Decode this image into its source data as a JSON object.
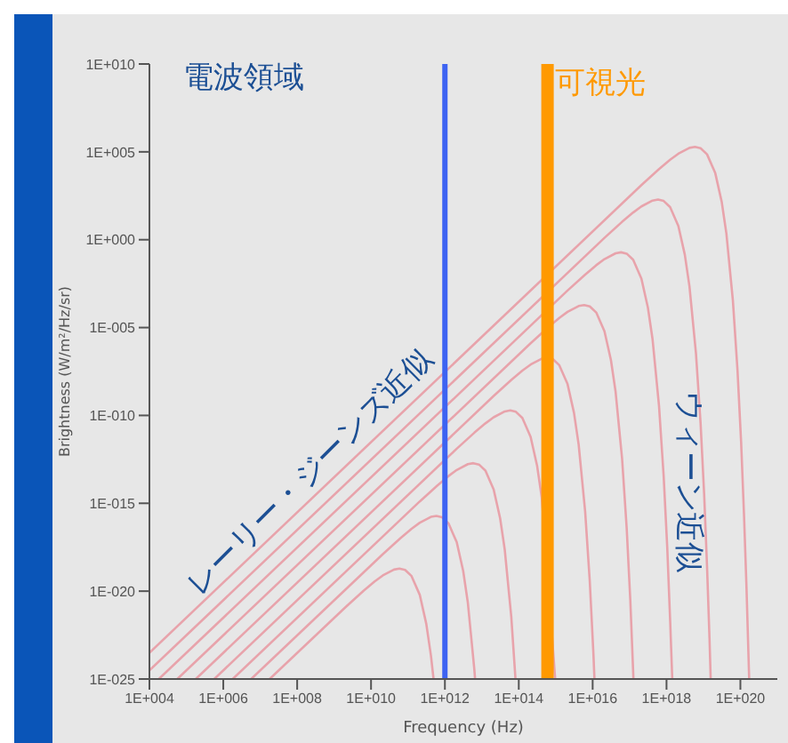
{
  "chart_data": {
    "type": "line",
    "xlabel": "Frequency (Hz)",
    "ylabel": "Brightness (W/m²/Hz/sr)",
    "log": "xy",
    "grid": false,
    "legend": false,
    "marker": "none",
    "line_style": "solid",
    "xlim": [
      10000.0,
      1e+21
    ],
    "ylim": [
      1e-25,
      10000000000.0
    ],
    "xticks": [
      {
        "value": 10000.0,
        "label": "1E+004"
      },
      {
        "value": 1000000.0,
        "label": "1E+006"
      },
      {
        "value": 100000000.0,
        "label": "1E+008"
      },
      {
        "value": 10000000000.0,
        "label": "1E+010"
      },
      {
        "value": 1000000000000.0,
        "label": "1E+012"
      },
      {
        "value": 100000000000000.0,
        "label": "1E+014"
      },
      {
        "value": 1e+16,
        "label": "1E+016"
      },
      {
        "value": 1e+18,
        "label": "1E+018"
      },
      {
        "value": 1e+20,
        "label": "1E+020"
      }
    ],
    "yticks": [
      {
        "value": 1e-25,
        "label": "1E-025"
      },
      {
        "value": 1e-20,
        "label": "1E-020"
      },
      {
        "value": 1e-15,
        "label": "1E-015"
      },
      {
        "value": 1e-10,
        "label": "1E-010"
      },
      {
        "value": 1e-05,
        "label": "1E-005"
      },
      {
        "value": 1,
        "label": "1E+000"
      },
      {
        "value": 100000.0,
        "label": "1E+005"
      },
      {
        "value": 10000000000.0,
        "label": "1E+010"
      }
    ],
    "series": [
      {
        "color": "#e8a3ab",
        "x": [
          18000000.0,
          2090000000.0,
          6270000000.0,
          12500000000.0,
          20900000000.0,
          41800000000.0,
          58900000000.0,
          83600000000.0,
          125000000000.0,
          209000000000.0,
          313000000000.0,
          418000000000.0,
          493000000000.0
        ],
        "values": [
          1e-25,
          1.28e-21,
          1.04e-20,
          3.54e-20,
          7.85e-20,
          1.69e-19,
          1.92e-19,
          1.61e-19,
          7.23e-20,
          6.12e-21,
          1.39e-22,
          2.22e-24,
          1e-25
        ]
      },
      {
        "color": "#e8a3ab",
        "x": [
          5690000.0,
          20900000000.0,
          62700000000.0,
          125000000000.0,
          209000000000.0,
          418000000000.0,
          589000000000.0,
          836000000000.0,
          1250000000000.0,
          2090000000000.0,
          3130000000000.0,
          4180000000000.0,
          6270000000000.0,
          6560000000000.0
        ],
        "values": [
          1e-25,
          1.28e-18,
          1.04e-17,
          3.54e-17,
          7.85e-17,
          1.69e-16,
          1.92e-16,
          1.61e-16,
          7.23e-17,
          6.12e-18,
          1.39e-19,
          2.22e-21,
          3.4e-25,
          1e-25
        ]
      },
      {
        "color": "#e8a3ab",
        "x": [
          1800000.0,
          209000000000.0,
          627000000000.0,
          1250000000000.0,
          2090000000000.0,
          4180000000000.0,
          5890000000000.0,
          8360000000000.0,
          12500000000000.0,
          20900000000000.0,
          31300000000000.0,
          41800000000000.0,
          62700000000000.0,
          81500000000000.0
        ],
        "values": [
          1e-25,
          1.28e-15,
          1.04e-14,
          3.54e-14,
          7.85e-14,
          1.69e-13,
          1.92e-13,
          1.61e-13,
          7.23e-14,
          6.12e-15,
          1.39e-16,
          2.22e-18,
          3.4e-22,
          1e-25
        ]
      },
      {
        "color": "#e8a3ab",
        "x": [
          569000.0,
          2090000000000.0,
          6270000000000.0,
          12500000000000.0,
          20900000000000.0,
          41800000000000.0,
          58900000000000.0,
          83600000000000.0,
          125000000000000.0,
          209000000000000.0,
          313000000000000.0,
          418000000000000.0,
          968000000000000.0
        ],
        "values": [
          1e-25,
          1.28e-12,
          1.04e-11,
          3.54e-11,
          7.85e-11,
          1.69e-10,
          1.92e-10,
          1.61e-10,
          7.23e-11,
          6.12e-12,
          1.39e-13,
          2.22e-15,
          1e-25
        ]
      },
      {
        "color": "#e8a3ab",
        "x": [
          180000.0,
          20900000000000.0,
          62700000000000.0,
          125000000000000.0,
          209000000000000.0,
          418000000000000.0,
          589000000000000.0,
          836000000000000.0,
          1250000000000000.0,
          2090000000000000.0,
          3130000000000000.0,
          4180000000000000.0,
          6270000000000000.0,
          8360000000000000.0,
          1.045e+16,
          1.12e+16
        ],
        "values": [
          1e-25,
          1.28e-09,
          1.04e-08,
          3.54e-08,
          7.85e-08,
          1.69e-07,
          1.92e-07,
          1.61e-07,
          7.23e-08,
          6.12e-09,
          1.39e-10,
          2.22e-12,
          3.4e-16,
          3.63e-20,
          3.24e-24,
          1e-25
        ]
      },
      {
        "color": "#e8a3ab",
        "x": [
          56900.0,
          209000000000000.0,
          627000000000000.0,
          1250000000000000.0,
          2090000000000000.0,
          4180000000000000.0,
          5890000000000000.0,
          8360000000000000.0,
          1.25e+16,
          2.09e+16,
          3.13e+16,
          4.18e+16,
          6.27e+16,
          8.36e+16,
          1.045e+17,
          1.25e+17,
          1.27e+17
        ],
        "values": [
          1e-25,
          1.28e-06,
          1.04e-05,
          3.54e-05,
          7.85e-05,
          0.000169,
          0.000192,
          0.000161,
          7.23e-05,
          6.12e-06,
          1.39e-07,
          2.22e-09,
          3.4e-13,
          3.63e-17,
          3.24e-21,
          2.57e-25,
          1e-25
        ]
      },
      {
        "color": "#e8a3ab",
        "x": [
          18000.0,
          2090000000000000.0,
          6270000000000000.0,
          1.25e+16,
          2.09e+16,
          4.18e+16,
          5.89e+16,
          8.36e+16,
          1.25e+17,
          2.09e+17,
          3.13e+17,
          4.18e+17,
          6.27e+17,
          8.36e+17,
          1.045e+18,
          1.25e+18,
          1.43e+18
        ],
        "values": [
          1e-25,
          0.00128,
          0.0104,
          0.0354,
          0.0785,
          0.169,
          0.192,
          0.161,
          0.0723,
          0.00612,
          0.000139,
          2.22e-06,
          3.4e-10,
          3.63e-14,
          3.24e-18,
          2.57e-22,
          1e-25
        ]
      },
      {
        "color": "#e8a3ab",
        "x": [
          10000.0,
          2.09e+16,
          6.27e+16,
          1.25e+17,
          2.09e+17,
          4.18e+17,
          5.89e+17,
          8.36e+17,
          1.25e+18,
          2.09e+18,
          3.13e+18,
          4.18e+18,
          6.27e+18,
          8.36e+18,
          1.045e+19,
          1.25e+19,
          1.46e+19,
          1.57e+19
        ],
        "values": [
          3.09e-25,
          1.28,
          10.4,
          35.4,
          78.5,
          169,
          192,
          161,
          72.3,
          6.12,
          0.139,
          0.00222,
          3.4e-07,
          3.63e-11,
          3.24e-15,
          2.57e-19,
          1.82e-23,
          1e-25
        ]
      },
      {
        "color": "#e8a3ab",
        "x": [
          10000.0,
          2.09e+17,
          6.27e+17,
          1.25e+18,
          2.09e+18,
          4.18e+18,
          5.89e+18,
          8.36e+18,
          1.25e+19,
          2.09e+19,
          3.13e+19,
          4.18e+19,
          6.27e+19,
          8.36e+19,
          1.045e+20,
          1.25e+20,
          1.46e+20,
          1.73e+20
        ],
        "values": [
          3.09e-24,
          1280.0,
          10400.0,
          35400.0,
          78500.0,
          169000.0,
          192000.0,
          161000.0,
          72300.0,
          6120.0,
          139,
          2.22,
          0.00034,
          3.63e-08,
          3.24e-12,
          2.57e-16,
          1.82e-20,
          1e-25
        ]
      }
    ],
    "ref_lines": [
      {
        "axis": "x",
        "value": 1000000000000.0,
        "label": null,
        "color": "#3d63f2"
      },
      {
        "axis": "x",
        "value": 600000000000000.0,
        "label": "可視光",
        "color": "#ff9900"
      }
    ],
    "annotations": [
      "電波領域",
      "レーリー・ジーンズ近似",
      "ウィーン近似"
    ]
  }
}
